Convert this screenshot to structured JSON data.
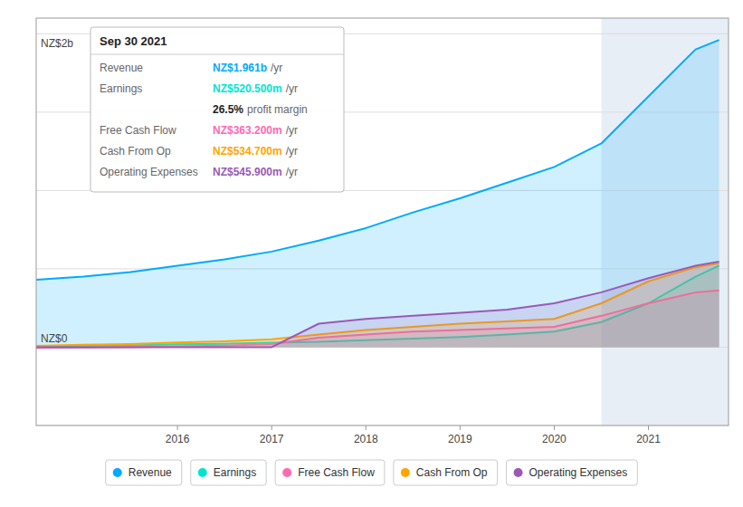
{
  "chart_data": {
    "type": "area",
    "x": [
      2014.5,
      2015.0,
      2015.5,
      2016.0,
      2016.5,
      2017.0,
      2017.5,
      2018.0,
      2018.5,
      2019.0,
      2019.5,
      2020.0,
      2020.5,
      2021.0,
      2021.5,
      2021.75
    ],
    "series": [
      {
        "name": "Revenue",
        "color": "#00aaff",
        "values": [
          430,
          450,
          480,
          520,
          560,
          610,
          680,
          760,
          860,
          950,
          1050,
          1150,
          1300,
          1600,
          1900,
          1961
        ]
      },
      {
        "name": "Earnings",
        "color": "#00e5cc",
        "values": [
          5,
          10,
          12,
          18,
          22,
          28,
          35,
          45,
          55,
          65,
          80,
          100,
          160,
          280,
          450,
          520
        ]
      },
      {
        "name": "Free Cash Flow",
        "color": "#ff69b4",
        "values": [
          -5,
          -3,
          0,
          5,
          10,
          20,
          60,
          80,
          100,
          110,
          120,
          130,
          200,
          280,
          350,
          363
        ]
      },
      {
        "name": "Cash From Op",
        "color": "#ffa500",
        "values": [
          8,
          15,
          20,
          30,
          38,
          50,
          80,
          110,
          130,
          150,
          165,
          180,
          280,
          420,
          510,
          535
        ]
      },
      {
        "name": "Operating Expenses",
        "color": "#9b59b6",
        "values": [
          0,
          0,
          0,
          0,
          0,
          0,
          150,
          180,
          200,
          220,
          240,
          280,
          350,
          440,
          520,
          546
        ]
      }
    ],
    "xlim": [
      2014.5,
      2021.85
    ],
    "xticks": [
      2016,
      2017,
      2018,
      2019,
      2020,
      2021
    ],
    "ylim": [
      -500,
      2100
    ],
    "yticks": [
      -500,
      0,
      500,
      1000,
      1500,
      2000
    ],
    "grid": true,
    "tick_labels": "x",
    "legend": "bottom",
    "shaded_from": 2020.5,
    "annotations": [
      "NZ$2b",
      "NZ$0"
    ],
    "info_box": {
      "title": "Sep 30 2021",
      "rows": [
        {
          "label": "Revenue",
          "value": "NZ$1.961b",
          "suffix": "/yr",
          "color": "#00aaff"
        },
        {
          "label": "Earnings",
          "value": "NZ$520.500m",
          "suffix": "/yr",
          "color": "#00e5cc"
        },
        {
          "value": "26.5%",
          "suffix": "profit margin"
        },
        {
          "label": "Free Cash Flow",
          "value": "NZ$363.200m",
          "suffix": "/yr",
          "color": "#ff69b4"
        },
        {
          "label": "Cash From Op",
          "value": "NZ$534.700m",
          "suffix": "/yr",
          "color": "#ffa500"
        },
        {
          "label": "Operating Expenses",
          "value": "NZ$545.900m",
          "suffix": "/yr",
          "color": "#9b59b6"
        }
      ]
    }
  }
}
